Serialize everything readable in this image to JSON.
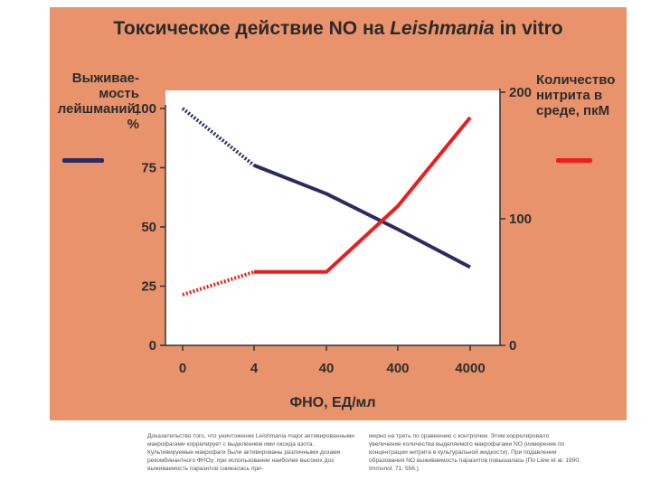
{
  "title": {
    "prefix": "Токсическое действие NO на ",
    "italic": "Leishmania",
    "suffix": " in vitro"
  },
  "ylabel_left": "Выживае-\nмость\nлейшманий,\n%",
  "ylabel_right": "Количество\nнитрита в\nсреде, пкМ",
  "caption": {
    "col1": "Доказательство того, что уничтожение Leishmania major активированными макрофагами коррелирует с выделением ими оксида азота. Культивируемые макрофаги были активированы различными дозами рекомбинантного ФНОγ; при использовании наиболее высоких доз выживаемость паразитов снижалась при-",
    "col2": "мерно на треть по сравнению с контролем. Этим коррелировало увеличение количества выделяемого макрофагами NO (измерение по концентрации нитрита в культуральной жидкости). При подавлении образования NO выживаемость паразитов повышалась (По Liew et al. 1990, Immunol. 71: 556.)"
  },
  "colors": {
    "panel_background": "#e8936b",
    "survival_series": "#2b2b63",
    "nitrite_series": "#ee1c1c"
  },
  "chart_data": {
    "type": "line",
    "title": "Токсическое действие NO на Leishmania in vitro",
    "xlabel": "ФНО, ЕД/мл",
    "categories": [
      "0",
      "4",
      "40",
      "400",
      "4000"
    ],
    "y_left": {
      "label": "Выживаемость лейшманий, %",
      "ticks": [
        0,
        25,
        50,
        75,
        100
      ],
      "range": [
        0,
        100
      ]
    },
    "y_right": {
      "label": "Количество нитрита в среде, пкМ",
      "ticks": [
        0,
        100,
        200
      ],
      "range": [
        0,
        200
      ]
    },
    "series": [
      {
        "axis": "left",
        "color": "#2b2b63",
        "dotted_first_segment": true,
        "points": [
          [
            0,
            100
          ],
          [
            1,
            76
          ],
          [
            2,
            64
          ],
          [
            3,
            49
          ],
          [
            4,
            33
          ]
        ]
      },
      {
        "axis": "right",
        "color": "#ee1c1c",
        "dotted_first_segment": true,
        "points": [
          [
            0,
            40
          ],
          [
            1,
            58
          ],
          [
            2,
            58
          ],
          [
            3,
            110
          ],
          [
            4,
            180
          ]
        ]
      }
    ],
    "grid": false,
    "legend": "left and right of the plot, beside the y-axis labels"
  }
}
